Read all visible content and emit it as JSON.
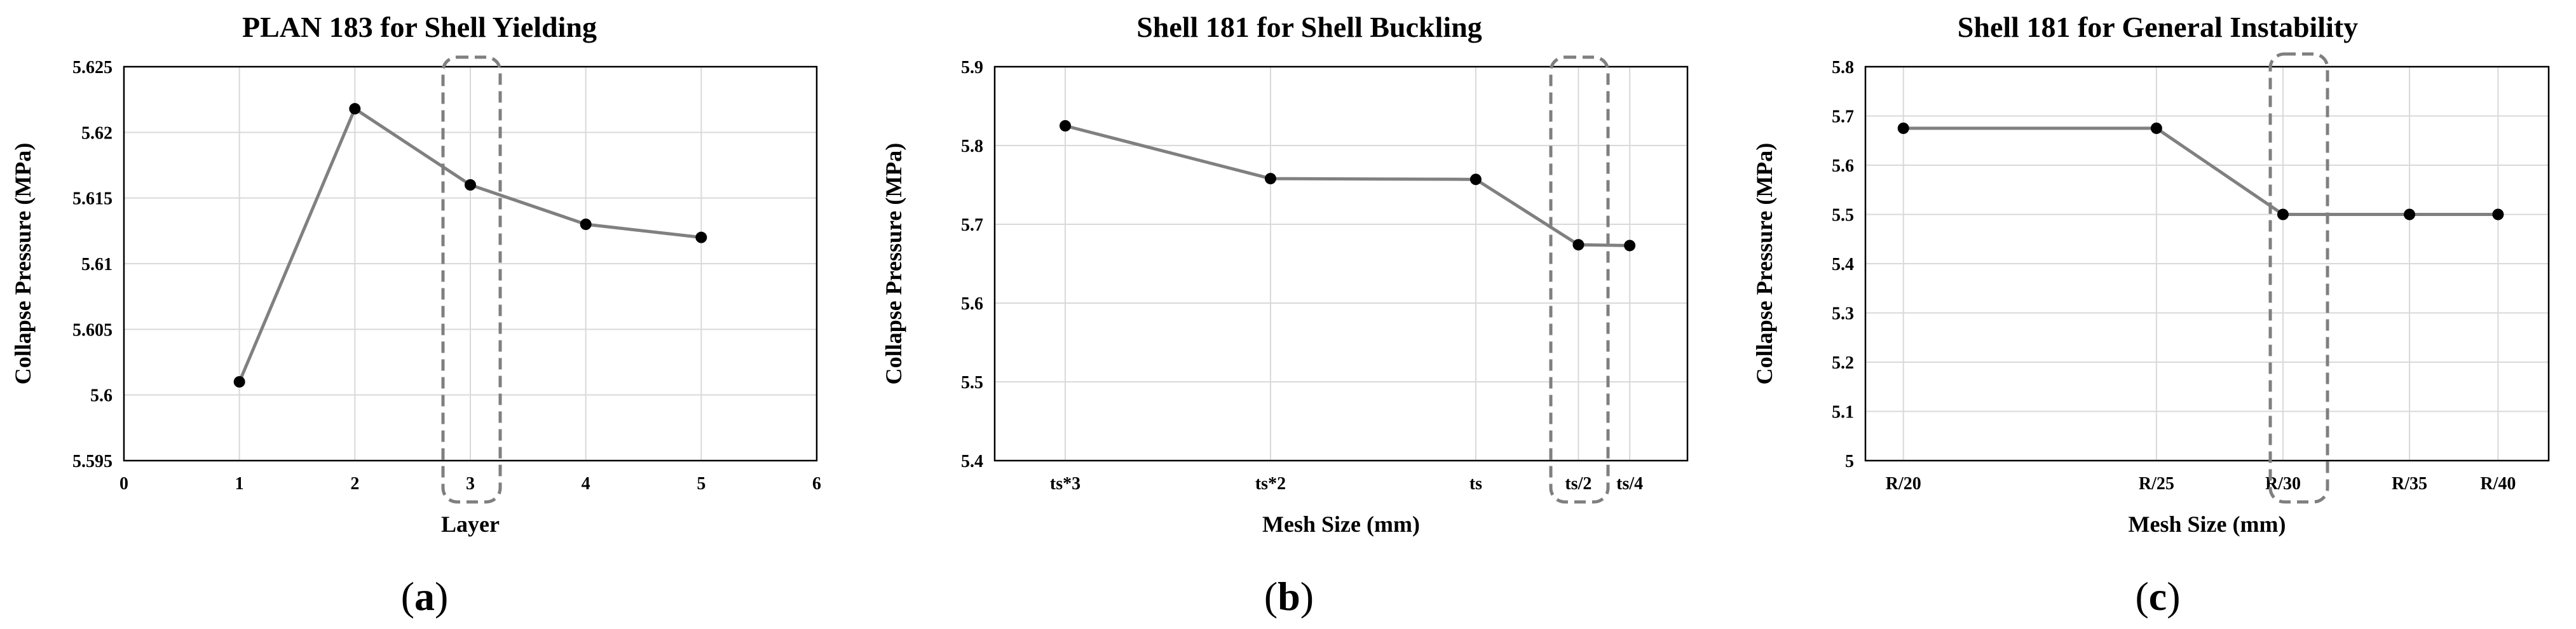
{
  "chart_data": [
    {
      "type": "line",
      "title": "PLAN 183 for Shell Yielding",
      "xlabel": "Layer",
      "ylabel": "Collapse Pressure (MPa)",
      "xlim": [
        0,
        6
      ],
      "ylim": [
        5.595,
        5.625
      ],
      "x_ticks": [
        "0",
        "1",
        "2",
        "3",
        "4",
        "5",
        "6"
      ],
      "y_ticks": [
        "5.595",
        "5.6",
        "5.605",
        "5.61",
        "5.615",
        "5.62",
        "5.625"
      ],
      "grid": true,
      "line_color": "#808080",
      "marker_color": "#000000",
      "highlight": "3",
      "series": [
        {
          "x": [
            1,
            2,
            3,
            4,
            5
          ],
          "values": [
            5.601,
            5.6218,
            5.616,
            5.613,
            5.612
          ]
        }
      ],
      "panel_label": "a"
    },
    {
      "type": "line",
      "title": "Shell 181 for Shell Buckling",
      "xlabel": "Mesh Size (mm)",
      "ylabel": "Collapse Pressure (MPa)",
      "ylim": [
        5.4,
        5.9
      ],
      "categories": [
        "ts*3",
        "ts*2",
        "ts",
        "ts/2",
        "ts/4"
      ],
      "category_positions": [
        0,
        1.6,
        3.2,
        4.0,
        4.4
      ],
      "xlim": [
        -0.55,
        4.85
      ],
      "y_ticks": [
        "5.4",
        "5.5",
        "5.6",
        "5.7",
        "5.8",
        "5.9"
      ],
      "grid": true,
      "line_color": "#808080",
      "marker_color": "#000000",
      "highlight": "ts/2",
      "series": [
        {
          "values": [
            5.825,
            5.758,
            5.757,
            5.674,
            5.673
          ]
        }
      ],
      "panel_label": "b"
    },
    {
      "type": "line",
      "title": "Shell 181 for General Instability",
      "xlabel": "Mesh Size (mm)",
      "ylabel": "Collapse Pressure (MPa)",
      "ylim": [
        5.0,
        5.8
      ],
      "categories": [
        "R/20",
        "R/25",
        "R/30",
        "R/35",
        "R/40"
      ],
      "category_positions": [
        0,
        2,
        3,
        4,
        4.7
      ],
      "xlim": [
        -0.3,
        5.1
      ],
      "y_ticks": [
        "5",
        "5.1",
        "5.2",
        "5.3",
        "5.4",
        "5.5",
        "5.6",
        "5.7",
        "5.8"
      ],
      "grid": true,
      "line_color": "#808080",
      "marker_color": "#000000",
      "highlight": "R/30",
      "series": [
        {
          "values": [
            5.675,
            5.675,
            5.5,
            5.5,
            5.5
          ]
        }
      ],
      "panel_label": "c"
    }
  ]
}
